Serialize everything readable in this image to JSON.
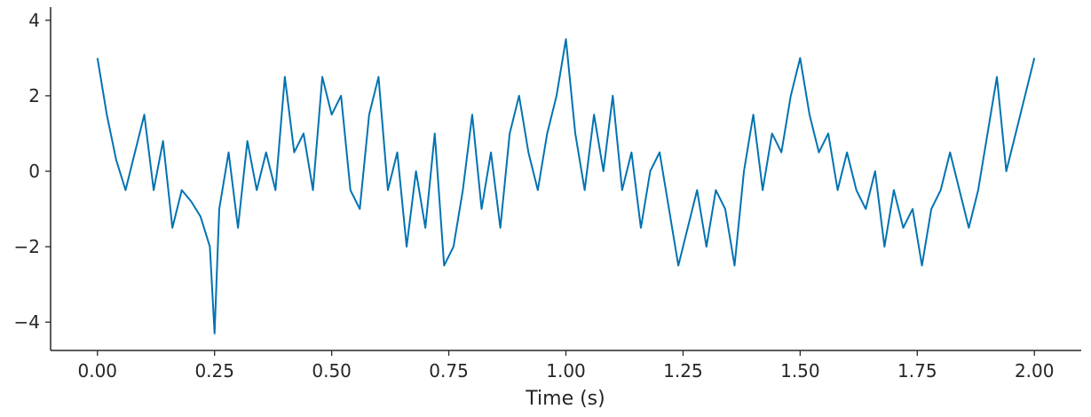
{
  "chart_data": {
    "type": "line",
    "x_label": "Time (s)",
    "x": [
      0.0,
      0.02,
      0.04,
      0.06,
      0.08,
      0.1,
      0.12,
      0.14,
      0.16,
      0.18,
      0.2,
      0.22,
      0.24,
      0.25,
      0.26,
      0.28,
      0.3,
      0.32,
      0.34,
      0.36,
      0.38,
      0.4,
      0.42,
      0.44,
      0.46,
      0.48,
      0.5,
      0.52,
      0.54,
      0.56,
      0.58,
      0.6,
      0.62,
      0.64,
      0.66,
      0.68,
      0.7,
      0.72,
      0.74,
      0.76,
      0.78,
      0.8,
      0.82,
      0.84,
      0.86,
      0.88,
      0.9,
      0.92,
      0.94,
      0.96,
      0.98,
      1.0,
      1.02,
      1.04,
      1.06,
      1.08,
      1.1,
      1.12,
      1.14,
      1.16,
      1.18,
      1.2,
      1.22,
      1.24,
      1.26,
      1.28,
      1.3,
      1.32,
      1.34,
      1.36,
      1.38,
      1.4,
      1.42,
      1.44,
      1.46,
      1.48,
      1.5,
      1.52,
      1.54,
      1.56,
      1.58,
      1.6,
      1.62,
      1.64,
      1.66,
      1.68,
      1.7,
      1.72,
      1.74,
      1.76,
      1.78,
      1.8,
      1.82,
      1.84,
      1.86,
      1.88,
      1.9,
      1.92,
      1.94,
      1.96,
      1.98,
      2.0
    ],
    "series": [
      {
        "color": "#0173b2",
        "values": [
          3.0,
          1.5,
          0.3,
          -0.5,
          0.5,
          1.5,
          -0.5,
          0.8,
          -1.5,
          -0.5,
          -0.8,
          -1.2,
          -2.0,
          -4.3,
          -1.0,
          0.5,
          -1.5,
          0.8,
          -0.5,
          0.5,
          -0.5,
          2.5,
          0.5,
          1.0,
          -0.5,
          2.5,
          1.5,
          2.0,
          -0.5,
          -1.0,
          1.5,
          2.5,
          -0.5,
          0.5,
          -2.0,
          0.0,
          -1.5,
          1.0,
          -2.5,
          -2.0,
          -0.5,
          1.5,
          -1.0,
          0.5,
          -1.5,
          1.0,
          2.0,
          0.5,
          -0.5,
          1.0,
          2.0,
          3.5,
          1.0,
          -0.5,
          1.5,
          0.0,
          2.0,
          -0.5,
          0.5,
          -1.5,
          0.0,
          0.5,
          -1.0,
          -2.5,
          -1.5,
          -0.5,
          -2.0,
          -0.5,
          -1.0,
          -2.5,
          0.0,
          1.5,
          -0.5,
          1.0,
          0.5,
          2.0,
          3.0,
          1.5,
          0.5,
          1.0,
          -0.5,
          0.5,
          -0.5,
          -1.0,
          0.0,
          -2.0,
          -0.5,
          -1.5,
          -1.0,
          -2.5,
          -1.0,
          -0.5,
          0.5,
          -0.5,
          -1.5,
          -0.5,
          1.0,
          2.5,
          0.0,
          1.0,
          2.0,
          3.0
        ]
      }
    ],
    "xlim": [
      -0.1,
      2.1
    ],
    "ylim": [
      -4.75,
      4.35
    ],
    "xticks": [
      {
        "value": 0,
        "label": "0.00"
      },
      {
        "value": 0.25,
        "label": "0.25"
      },
      {
        "value": 0.5,
        "label": "0.50"
      },
      {
        "value": 0.75,
        "label": "0.75"
      },
      {
        "value": 1,
        "label": "1.00"
      },
      {
        "value": 1.25,
        "label": "1.25"
      },
      {
        "value": 1.5,
        "label": "1.50"
      },
      {
        "value": 1.75,
        "label": "1.75"
      },
      {
        "value": 2,
        "label": "2.00"
      }
    ],
    "yticks": [
      {
        "value": -4,
        "label": "−4"
      },
      {
        "value": -2,
        "label": "−2"
      },
      0,
      2,
      4
    ],
    "grid": false
  }
}
